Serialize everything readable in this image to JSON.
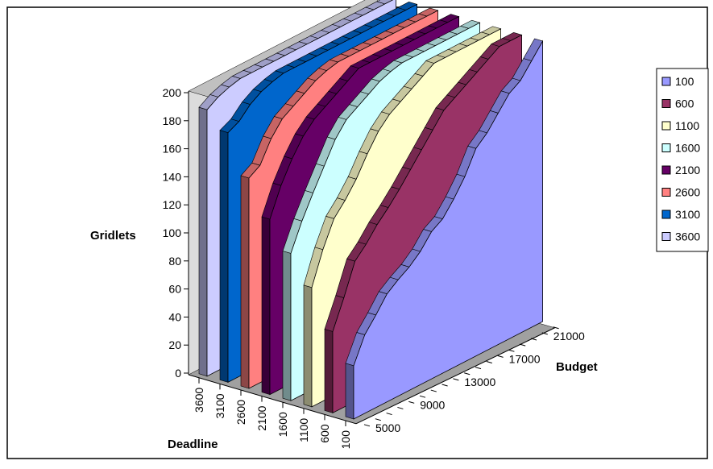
{
  "chart_data": {
    "type": "area",
    "subtype": "3d-stacked-depth-area",
    "title": "",
    "ylabel": "Gridlets",
    "xlabel": "Budget",
    "zlabel": "Deadline",
    "ylim": [
      0,
      200
    ],
    "y_ticks": [
      "0",
      "20",
      "40",
      "60",
      "80",
      "100",
      "120",
      "140",
      "160",
      "180",
      "200"
    ],
    "budget_ticks": [
      "5000",
      "9000",
      "13000",
      "17000",
      "21000"
    ],
    "deadline_ticks": [
      "100",
      "600",
      "1100",
      "1600",
      "2100",
      "2600",
      "3100",
      "3600"
    ],
    "budget_values": [
      5000,
      6000,
      7000,
      8000,
      9000,
      10000,
      11000,
      12000,
      13000,
      14000,
      15000,
      16000,
      17000,
      18000,
      19000,
      20000,
      21000,
      22000
    ],
    "legend_position": "right",
    "series": [
      {
        "name": "100",
        "color": "#9999ff",
        "values": [
          38,
          56,
          66,
          77,
          83,
          88,
          95,
          105,
          110,
          120,
          132,
          148,
          155,
          165,
          175,
          180,
          190,
          200
        ]
      },
      {
        "name": "600",
        "color": "#993366",
        "values": [
          58,
          78,
          100,
          108,
          118,
          126,
          135,
          145,
          155,
          165,
          175,
          180,
          185,
          190,
          195,
          200,
          200,
          200
        ]
      },
      {
        "name": "1100",
        "color": "#ffffcc",
        "values": [
          85,
          108,
          126,
          135,
          146,
          160,
          172,
          180,
          185,
          190,
          195,
          200,
          200,
          200,
          200,
          200,
          200,
          200
        ]
      },
      {
        "name": "1600",
        "color": "#ccffff",
        "values": [
          105,
          124,
          140,
          155,
          170,
          180,
          185,
          190,
          195,
          198,
          200,
          200,
          200,
          200,
          200,
          200,
          200,
          200
        ]
      },
      {
        "name": "2100",
        "color": "#660066",
        "values": [
          125,
          145,
          160,
          172,
          180,
          185,
          190,
          195,
          200,
          200,
          200,
          200,
          200,
          200,
          200,
          200,
          200,
          200
        ]
      },
      {
        "name": "2600",
        "color": "#ff8080",
        "values": [
          150,
          155,
          170,
          180,
          185,
          190,
          195,
          198,
          200,
          200,
          200,
          200,
          200,
          200,
          200,
          200,
          200,
          200
        ]
      },
      {
        "name": "3100",
        "color": "#0066cc",
        "values": [
          178,
          182,
          190,
          195,
          198,
          200,
          200,
          200,
          200,
          200,
          200,
          200,
          200,
          200,
          200,
          200,
          200,
          200
        ]
      },
      {
        "name": "3600",
        "color": "#ccccff",
        "values": [
          190,
          195,
          198,
          200,
          200,
          200,
          200,
          200,
          200,
          200,
          200,
          200,
          200,
          200,
          200,
          200,
          200,
          200
        ]
      }
    ]
  }
}
